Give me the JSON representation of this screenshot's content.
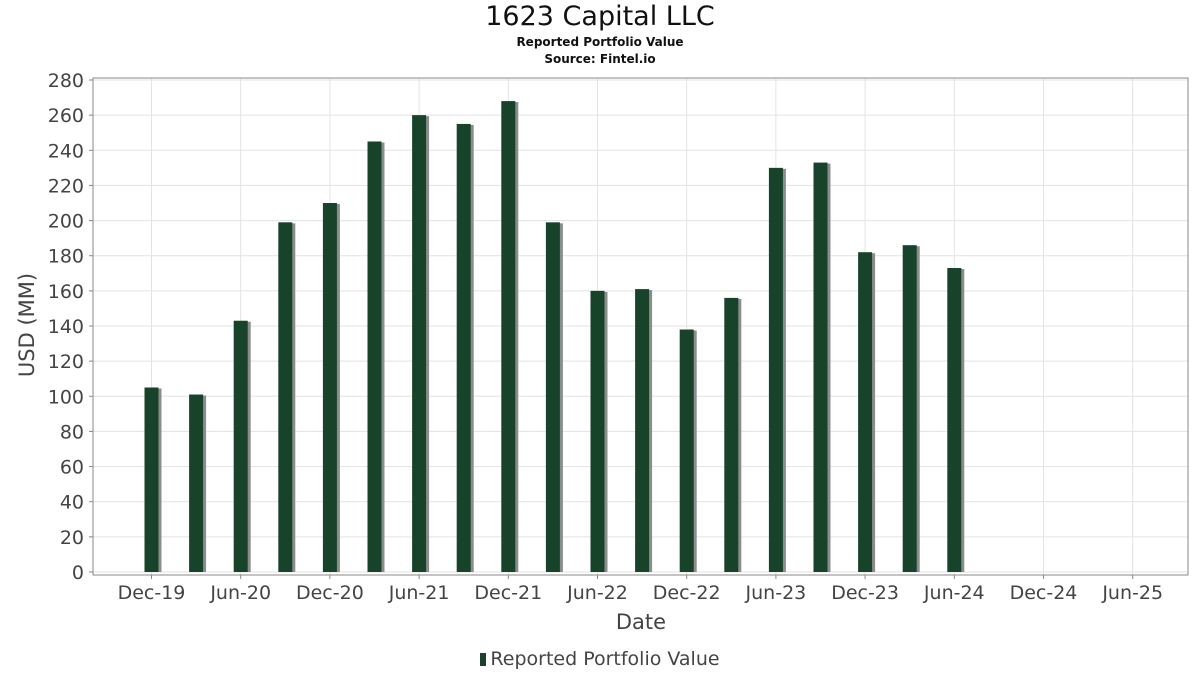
{
  "header": {
    "title": "1623 Capital LLC",
    "subtitle": "Reported Portfolio Value",
    "source": "Source: Fintel.io"
  },
  "chart_data": {
    "type": "bar",
    "title": "1623 Capital LLC",
    "xlabel": "Date",
    "ylabel": "USD (MM)",
    "ylim": [
      0,
      280
    ],
    "yticks": [
      0,
      20,
      40,
      60,
      80,
      100,
      120,
      140,
      160,
      180,
      200,
      220,
      240,
      260,
      280
    ],
    "x_tick_labels": [
      "Dec-19",
      "Jun-20",
      "Dec-20",
      "Jun-21",
      "Dec-21",
      "Jun-22",
      "Dec-22",
      "Jun-23",
      "Dec-23",
      "Jun-24",
      "Dec-24",
      "Jun-25"
    ],
    "grid": true,
    "legend": "bottom-center",
    "bar_color": "#17432a",
    "shadow_color": "#8c8c8c",
    "categories": [
      "Dec-19",
      "Mar-20",
      "Jun-20",
      "Sep-20",
      "Dec-20",
      "Mar-21",
      "Jun-21",
      "Sep-21",
      "Dec-21",
      "Mar-22",
      "Jun-22",
      "Sep-22",
      "Dec-22",
      "Mar-23",
      "Jun-23",
      "Sep-23",
      "Dec-23",
      "Mar-24",
      "Jun-24"
    ],
    "series": [
      {
        "name": "Reported Portfolio Value",
        "values": [
          105,
          101,
          143,
          199,
          210,
          245,
          260,
          255,
          268,
          199,
          160,
          161,
          138,
          156,
          230,
          233,
          182,
          186,
          173
        ]
      }
    ]
  }
}
